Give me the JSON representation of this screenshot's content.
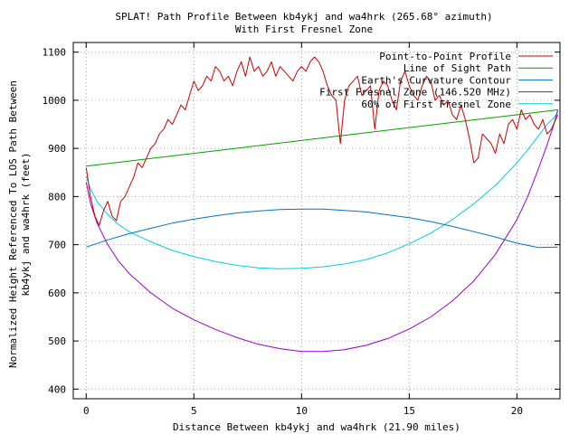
{
  "chart_data": {
    "type": "line",
    "title_lines": [
      "SPLAT! Path Profile Between kb4ykj and wa4hrk (265.68° azimuth)",
      "With First Fresnel Zone"
    ],
    "xlabel": "Distance Between kb4ykj and wa4hrk (21.90 miles)",
    "ylabel_lines": [
      "Normalized Height Referenced To LOS Path Between",
      "kb4ykj and wa4hrk (feet)"
    ],
    "xlim": [
      -0.6,
      22.0
    ],
    "ylim": [
      380,
      1120
    ],
    "x_ticks": [
      0,
      5,
      10,
      15,
      20
    ],
    "y_ticks": [
      400,
      500,
      600,
      700,
      800,
      900,
      1000,
      1100
    ],
    "grid": true,
    "legend_position": "top-right",
    "colors": {
      "profile": "#cc0000",
      "los": "#00a000",
      "earth": "#0073c8",
      "fresnel": "#9900cc",
      "fresnel60": "#00d0e0"
    },
    "series": [
      {
        "name": "Point-to-Point Profile",
        "key": "profile",
        "x": [
          0,
          0.2,
          0.4,
          0.6,
          0.8,
          1.0,
          1.2,
          1.4,
          1.6,
          1.8,
          2.0,
          2.2,
          2.4,
          2.6,
          2.8,
          3.0,
          3.2,
          3.4,
          3.6,
          3.8,
          4.0,
          4.2,
          4.4,
          4.6,
          4.8,
          5.0,
          5.2,
          5.4,
          5.6,
          5.8,
          6.0,
          6.2,
          6.4,
          6.6,
          6.8,
          7.0,
          7.2,
          7.4,
          7.6,
          7.8,
          8.0,
          8.2,
          8.4,
          8.6,
          8.8,
          9.0,
          9.2,
          9.4,
          9.6,
          9.8,
          10.0,
          10.2,
          10.4,
          10.6,
          10.8,
          11.0,
          11.2,
          11.4,
          11.6,
          11.8,
          12.0,
          12.2,
          12.4,
          12.6,
          12.8,
          13.0,
          13.2,
          13.4,
          13.6,
          13.8,
          14.0,
          14.2,
          14.4,
          14.6,
          14.8,
          15.0,
          15.2,
          15.4,
          15.6,
          15.8,
          16.0,
          16.2,
          16.4,
          16.6,
          16.8,
          17.0,
          17.2,
          17.4,
          17.6,
          17.8,
          18.0,
          18.2,
          18.4,
          18.6,
          18.8,
          19.0,
          19.2,
          19.4,
          19.6,
          19.8,
          20.0,
          20.2,
          20.4,
          20.6,
          20.8,
          21.0,
          21.2,
          21.4,
          21.6,
          21.9
        ],
        "values": [
          860,
          800,
          760,
          740,
          770,
          790,
          760,
          750,
          790,
          800,
          820,
          840,
          870,
          860,
          880,
          900,
          910,
          930,
          940,
          960,
          950,
          970,
          990,
          980,
          1010,
          1040,
          1020,
          1030,
          1050,
          1040,
          1070,
          1060,
          1040,
          1050,
          1030,
          1060,
          1080,
          1050,
          1090,
          1060,
          1070,
          1050,
          1060,
          1080,
          1050,
          1070,
          1060,
          1050,
          1040,
          1060,
          1070,
          1060,
          1080,
          1090,
          1080,
          1060,
          1030,
          1010,
          1000,
          910,
          1000,
          1030,
          1040,
          1050,
          1010,
          1020,
          1030,
          940,
          1020,
          1040,
          1030,
          1000,
          980,
          1040,
          1060,
          1030,
          1010,
          1000,
          1030,
          1050,
          1040,
          1000,
          1010,
          990,
          1000,
          970,
          960,
          990,
          960,
          920,
          870,
          880,
          930,
          920,
          910,
          890,
          930,
          910,
          950,
          960,
          940,
          980,
          960,
          970,
          950,
          940,
          960,
          930,
          940,
          970
        ]
      },
      {
        "name": "Line of Sight Path",
        "key": "los",
        "x": [
          0,
          21.9
        ],
        "values": [
          863,
          980
        ]
      },
      {
        "name": "Earth's Curvature Contour",
        "key": "earth",
        "x": [
          0,
          1,
          2,
          3,
          4,
          5,
          6,
          7,
          8,
          9,
          10,
          11,
          12,
          13,
          14,
          15,
          16,
          17,
          18,
          19,
          20,
          21,
          21.9
        ],
        "values": [
          695,
          710,
          723,
          734,
          745,
          753,
          760,
          766,
          770,
          773,
          774,
          774,
          771,
          768,
          762,
          756,
          748,
          738,
          727,
          716,
          703,
          694,
          695
        ]
      },
      {
        "name": "First Fresnel Zone (146.520 MHz)",
        "key": "fresnel",
        "x": [
          0,
          0.2,
          0.5,
          1,
          1.5,
          2,
          3,
          4,
          5,
          6,
          7,
          8,
          9,
          10,
          11,
          12,
          13,
          14,
          15,
          16,
          17,
          18,
          19,
          20,
          20.5,
          21,
          21.4,
          21.7,
          21.9
        ],
        "values": [
          830,
          786,
          745,
          700,
          666,
          640,
          600,
          568,
          544,
          524,
          507,
          493,
          484,
          478,
          478,
          482,
          491,
          505,
          525,
          550,
          583,
          625,
          680,
          752,
          800,
          858,
          907,
          948,
          980
        ]
      },
      {
        "name": "60% of First Fresnel Zone",
        "key": "fresnel60",
        "x": [
          0,
          0.2,
          0.5,
          1,
          1.5,
          2,
          3,
          4,
          5,
          6,
          7,
          8,
          9,
          10,
          11,
          12,
          13,
          14,
          15,
          16,
          17,
          18,
          19,
          20,
          20.5,
          21,
          21.4,
          21.7,
          21.9
        ],
        "values": [
          842,
          816,
          790,
          763,
          742,
          727,
          706,
          688,
          675,
          665,
          657,
          652,
          650,
          651,
          654,
          660,
          669,
          683,
          702,
          724,
          752,
          785,
          823,
          870,
          897,
          926,
          950,
          963,
          975
        ]
      }
    ]
  }
}
